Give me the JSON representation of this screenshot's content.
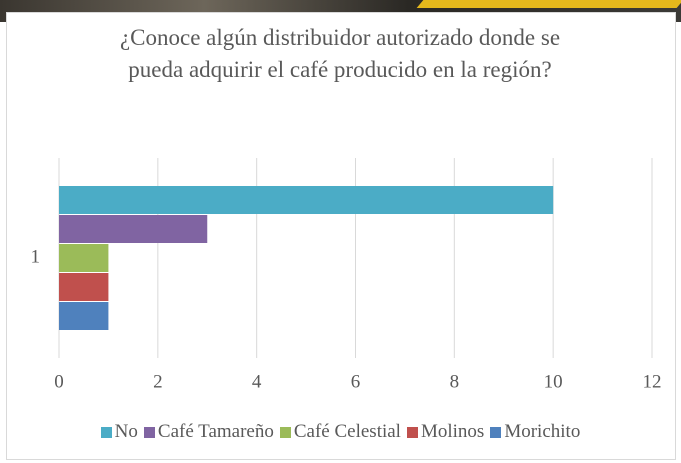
{
  "chart_data": {
    "type": "bar",
    "orientation": "horizontal",
    "title": "¿Conoce algún distribuidor autorizado donde se pueda adquirir el café producido en la región?",
    "categories": [
      "1"
    ],
    "series": [
      {
        "name": "No",
        "color": "#4bacc6",
        "values": [
          10
        ]
      },
      {
        "name": "Café Tamareño",
        "color": "#8064a2",
        "values": [
          3
        ]
      },
      {
        "name": "Café Celestial",
        "color": "#9bbb59",
        "values": [
          1
        ]
      },
      {
        "name": "Molinos",
        "color": "#c0504d",
        "values": [
          1
        ]
      },
      {
        "name": "Morichito",
        "color": "#4f81bd",
        "values": [
          1
        ]
      }
    ],
    "xlim": [
      0,
      12
    ],
    "xticks": [
      0,
      2,
      4,
      6,
      8,
      10,
      12
    ],
    "grid": true,
    "legend": "bottom"
  }
}
